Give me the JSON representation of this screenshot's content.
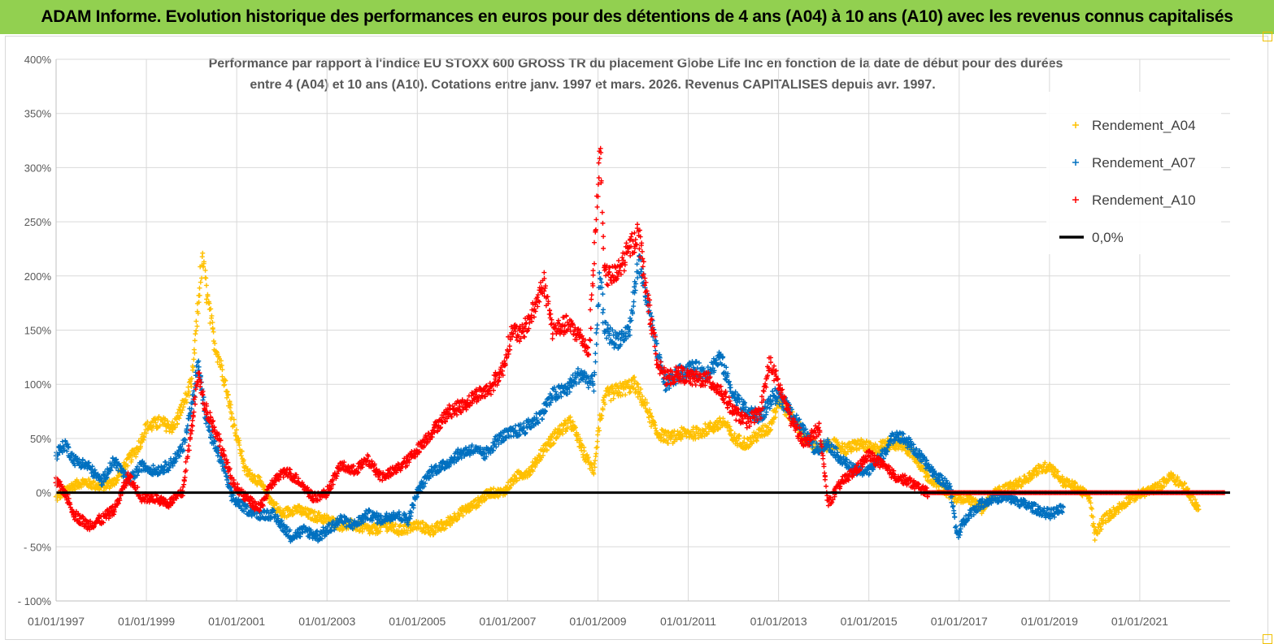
{
  "header": {
    "title": "ADAM Informe. Evolution historique des performances en euros pour des détentions de 4 ans (A04) à 10 ans (A10) avec les revenus connus capitalisés"
  },
  "chart_data": {
    "type": "scatter",
    "title_line1": "Performance par rapport à l'indice EU STOXX 600 GROSS TR  du placement Globe Life Inc en fonction de la date de début pour des durées",
    "title_line2": "entre 4 (A04) et 10 ans (A10). Cotations entre janv. 1997 et mars. 2026. Revenus CAPITALISES depuis avr. 1997.",
    "xlabel": "",
    "ylabel": "",
    "xlim": [
      1997.0,
      2023.0
    ],
    "ylim": [
      -100,
      400
    ],
    "grid": true,
    "legend_position": "top-right",
    "y_ticks": [
      "- 100%",
      "- 50%",
      "0%",
      "50%",
      "100%",
      "150%",
      "200%",
      "250%",
      "300%",
      "350%",
      "400%"
    ],
    "y_tick_values": [
      -100,
      -50,
      0,
      50,
      100,
      150,
      200,
      250,
      300,
      350,
      400
    ],
    "x_ticks": [
      "01/01/1997",
      "01/01/1999",
      "01/01/2001",
      "01/01/2003",
      "01/01/2005",
      "01/01/2007",
      "01/01/2009",
      "01/01/2011",
      "01/01/2013",
      "01/01/2015",
      "01/01/2017",
      "01/01/2019",
      "01/01/2021"
    ],
    "x_tick_values": [
      1997,
      1999,
      2001,
      2003,
      2005,
      2007,
      2009,
      2011,
      2013,
      2015,
      2017,
      2019,
      2021
    ],
    "legend": [
      {
        "label": "Rendement_A04",
        "color": "#ffc000",
        "marker": "+"
      },
      {
        "label": "Rendement_A07",
        "color": "#0070c0",
        "marker": "+"
      },
      {
        "label": "Rendement_A10",
        "color": "#ff0000",
        "marker": "+"
      },
      {
        "label": "0,0%",
        "color": "#000000",
        "marker": "line"
      }
    ],
    "series": [
      {
        "name": "Rendement_A04",
        "color": "#ffc000",
        "x_end": 2022.3,
        "points": [
          [
            1997.0,
            -5
          ],
          [
            1997.3,
            5
          ],
          [
            1997.6,
            10
          ],
          [
            1998.0,
            5
          ],
          [
            1998.3,
            10
          ],
          [
            1998.6,
            30
          ],
          [
            1998.8,
            40
          ],
          [
            1999.0,
            60
          ],
          [
            1999.3,
            65
          ],
          [
            1999.6,
            60
          ],
          [
            1999.8,
            80
          ],
          [
            2000.0,
            100
          ],
          [
            2000.1,
            150
          ],
          [
            2000.2,
            200
          ],
          [
            2000.25,
            215
          ],
          [
            2000.35,
            180
          ],
          [
            2000.5,
            140
          ],
          [
            2000.7,
            110
          ],
          [
            2000.9,
            70
          ],
          [
            2001.2,
            20
          ],
          [
            2001.5,
            10
          ],
          [
            2001.8,
            -10
          ],
          [
            2002.0,
            -20
          ],
          [
            2002.3,
            -15
          ],
          [
            2002.6,
            -20
          ],
          [
            2003.0,
            -25
          ],
          [
            2003.3,
            -30
          ],
          [
            2003.6,
            -30
          ],
          [
            2004.0,
            -35
          ],
          [
            2004.3,
            -30
          ],
          [
            2004.6,
            -35
          ],
          [
            2005.0,
            -30
          ],
          [
            2005.3,
            -35
          ],
          [
            2005.6,
            -30
          ],
          [
            2005.9,
            -20
          ],
          [
            2006.3,
            -10
          ],
          [
            2006.6,
            0
          ],
          [
            2006.9,
            0
          ],
          [
            2007.2,
            15
          ],
          [
            2007.5,
            20
          ],
          [
            2007.8,
            40
          ],
          [
            2008.1,
            55
          ],
          [
            2008.4,
            65
          ],
          [
            2008.7,
            35
          ],
          [
            2008.9,
            20
          ],
          [
            2009.05,
            70
          ],
          [
            2009.2,
            90
          ],
          [
            2009.5,
            95
          ],
          [
            2009.8,
            100
          ],
          [
            2010.0,
            85
          ],
          [
            2010.3,
            55
          ],
          [
            2010.6,
            50
          ],
          [
            2010.9,
            55
          ],
          [
            2011.2,
            55
          ],
          [
            2011.5,
            60
          ],
          [
            2011.8,
            65
          ],
          [
            2012.0,
            50
          ],
          [
            2012.3,
            45
          ],
          [
            2012.6,
            55
          ],
          [
            2012.8,
            60
          ],
          [
            2013.0,
            85
          ],
          [
            2013.3,
            70
          ],
          [
            2013.6,
            50
          ],
          [
            2013.9,
            40
          ],
          [
            2014.2,
            45
          ],
          [
            2014.5,
            40
          ],
          [
            2014.8,
            45
          ],
          [
            2015.1,
            40
          ],
          [
            2015.4,
            45
          ],
          [
            2015.7,
            45
          ],
          [
            2016.0,
            35
          ],
          [
            2016.3,
            15
          ],
          [
            2016.6,
            5
          ],
          [
            2016.9,
            -5
          ],
          [
            2017.2,
            -5
          ],
          [
            2017.5,
            -15
          ],
          [
            2017.8,
            0
          ],
          [
            2018.1,
            5
          ],
          [
            2018.4,
            10
          ],
          [
            2018.7,
            20
          ],
          [
            2019.0,
            25
          ],
          [
            2019.3,
            10
          ],
          [
            2019.6,
            5
          ],
          [
            2019.9,
            -5
          ],
          [
            2020.0,
            -40
          ],
          [
            2020.2,
            -25
          ],
          [
            2020.5,
            -15
          ],
          [
            2020.8,
            -5
          ],
          [
            2021.1,
            0
          ],
          [
            2021.4,
            5
          ],
          [
            2021.7,
            15
          ],
          [
            2022.0,
            5
          ],
          [
            2022.3,
            -15
          ]
        ]
      },
      {
        "name": "Rendement_A07",
        "color": "#0070c0",
        "x_end": 2019.3,
        "points": [
          [
            1997.0,
            35
          ],
          [
            1997.2,
            45
          ],
          [
            1997.4,
            30
          ],
          [
            1997.7,
            25
          ],
          [
            1998.0,
            10
          ],
          [
            1998.3,
            30
          ],
          [
            1998.6,
            10
          ],
          [
            1998.9,
            25
          ],
          [
            1999.2,
            20
          ],
          [
            1999.5,
            25
          ],
          [
            1999.8,
            40
          ],
          [
            2000.0,
            80
          ],
          [
            2000.15,
            120
          ],
          [
            2000.3,
            70
          ],
          [
            2000.5,
            45
          ],
          [
            2000.7,
            25
          ],
          [
            2000.9,
            -5
          ],
          [
            2001.2,
            -15
          ],
          [
            2001.5,
            -20
          ],
          [
            2001.8,
            -20
          ],
          [
            2002.0,
            -30
          ],
          [
            2002.2,
            -40
          ],
          [
            2002.5,
            -35
          ],
          [
            2002.8,
            -40
          ],
          [
            2003.0,
            -35
          ],
          [
            2003.3,
            -25
          ],
          [
            2003.6,
            -30
          ],
          [
            2003.9,
            -20
          ],
          [
            2004.2,
            -25
          ],
          [
            2004.5,
            -20
          ],
          [
            2004.8,
            -25
          ],
          [
            2005.0,
            0
          ],
          [
            2005.3,
            20
          ],
          [
            2005.6,
            25
          ],
          [
            2005.9,
            35
          ],
          [
            2006.2,
            40
          ],
          [
            2006.5,
            35
          ],
          [
            2006.8,
            50
          ],
          [
            2007.1,
            55
          ],
          [
            2007.4,
            60
          ],
          [
            2007.7,
            70
          ],
          [
            2008.0,
            90
          ],
          [
            2008.3,
            95
          ],
          [
            2008.6,
            110
          ],
          [
            2008.9,
            100
          ],
          [
            2009.05,
            200
          ],
          [
            2009.15,
            150
          ],
          [
            2009.4,
            140
          ],
          [
            2009.7,
            150
          ],
          [
            2009.9,
            215
          ],
          [
            2010.1,
            175
          ],
          [
            2010.3,
            130
          ],
          [
            2010.5,
            100
          ],
          [
            2010.8,
            110
          ],
          [
            2011.1,
            115
          ],
          [
            2011.4,
            110
          ],
          [
            2011.7,
            125
          ],
          [
            2012.0,
            90
          ],
          [
            2012.3,
            75
          ],
          [
            2012.6,
            70
          ],
          [
            2012.9,
            90
          ],
          [
            2013.2,
            80
          ],
          [
            2013.5,
            60
          ],
          [
            2013.8,
            40
          ],
          [
            2014.1,
            45
          ],
          [
            2014.4,
            30
          ],
          [
            2014.7,
            20
          ],
          [
            2015.0,
            20
          ],
          [
            2015.3,
            35
          ],
          [
            2015.6,
            55
          ],
          [
            2015.9,
            45
          ],
          [
            2016.2,
            30
          ],
          [
            2016.5,
            15
          ],
          [
            2016.8,
            5
          ],
          [
            2016.95,
            -40
          ],
          [
            2017.2,
            -20
          ],
          [
            2017.5,
            -10
          ],
          [
            2017.8,
            -5
          ],
          [
            2018.1,
            -5
          ],
          [
            2018.4,
            -10
          ],
          [
            2018.7,
            -15
          ],
          [
            2019.0,
            -20
          ],
          [
            2019.3,
            -15
          ]
        ]
      },
      {
        "name": "Rendement_A10",
        "color": "#ff0000",
        "x_end": 2016.3,
        "points": [
          [
            1997.0,
            10
          ],
          [
            1997.2,
            0
          ],
          [
            1997.4,
            -20
          ],
          [
            1997.7,
            -30
          ],
          [
            1998.0,
            -25
          ],
          [
            1998.3,
            -15
          ],
          [
            1998.6,
            15
          ],
          [
            1998.9,
            -5
          ],
          [
            1999.2,
            -5
          ],
          [
            1999.5,
            -10
          ],
          [
            1999.8,
            0
          ],
          [
            2000.0,
            60
          ],
          [
            2000.15,
            110
          ],
          [
            2000.3,
            80
          ],
          [
            2000.6,
            50
          ],
          [
            2000.9,
            10
          ],
          [
            2001.2,
            -5
          ],
          [
            2001.5,
            -15
          ],
          [
            2001.8,
            10
          ],
          [
            2002.1,
            20
          ],
          [
            2002.4,
            10
          ],
          [
            2002.7,
            -5
          ],
          [
            2003.0,
            0
          ],
          [
            2003.3,
            25
          ],
          [
            2003.6,
            20
          ],
          [
            2003.9,
            30
          ],
          [
            2004.2,
            15
          ],
          [
            2004.5,
            20
          ],
          [
            2004.8,
            30
          ],
          [
            2005.1,
            45
          ],
          [
            2005.4,
            60
          ],
          [
            2005.7,
            75
          ],
          [
            2006.0,
            80
          ],
          [
            2006.3,
            90
          ],
          [
            2006.6,
            95
          ],
          [
            2006.9,
            115
          ],
          [
            2007.1,
            150
          ],
          [
            2007.3,
            145
          ],
          [
            2007.6,
            170
          ],
          [
            2007.8,
            195
          ],
          [
            2008.0,
            150
          ],
          [
            2008.3,
            155
          ],
          [
            2008.6,
            145
          ],
          [
            2008.8,
            130
          ],
          [
            2009.05,
            320
          ],
          [
            2009.15,
            200
          ],
          [
            2009.4,
            200
          ],
          [
            2009.7,
            225
          ],
          [
            2009.9,
            240
          ],
          [
            2010.1,
            180
          ],
          [
            2010.3,
            125
          ],
          [
            2010.5,
            105
          ],
          [
            2010.8,
            110
          ],
          [
            2011.1,
            105
          ],
          [
            2011.4,
            105
          ],
          [
            2011.7,
            95
          ],
          [
            2012.0,
            75
          ],
          [
            2012.3,
            65
          ],
          [
            2012.6,
            75
          ],
          [
            2012.8,
            120
          ],
          [
            2013.0,
            100
          ],
          [
            2013.3,
            65
          ],
          [
            2013.6,
            45
          ],
          [
            2013.9,
            60
          ],
          [
            2014.1,
            -10
          ],
          [
            2014.4,
            10
          ],
          [
            2014.7,
            20
          ],
          [
            2015.0,
            35
          ],
          [
            2015.3,
            25
          ],
          [
            2015.6,
            15
          ],
          [
            2015.9,
            10
          ],
          [
            2016.3,
            0
          ]
        ]
      },
      {
        "name": "0,0%",
        "color": "#000000",
        "points": [
          [
            1997.0,
            0
          ],
          [
            2023.0,
            0
          ]
        ]
      }
    ]
  }
}
